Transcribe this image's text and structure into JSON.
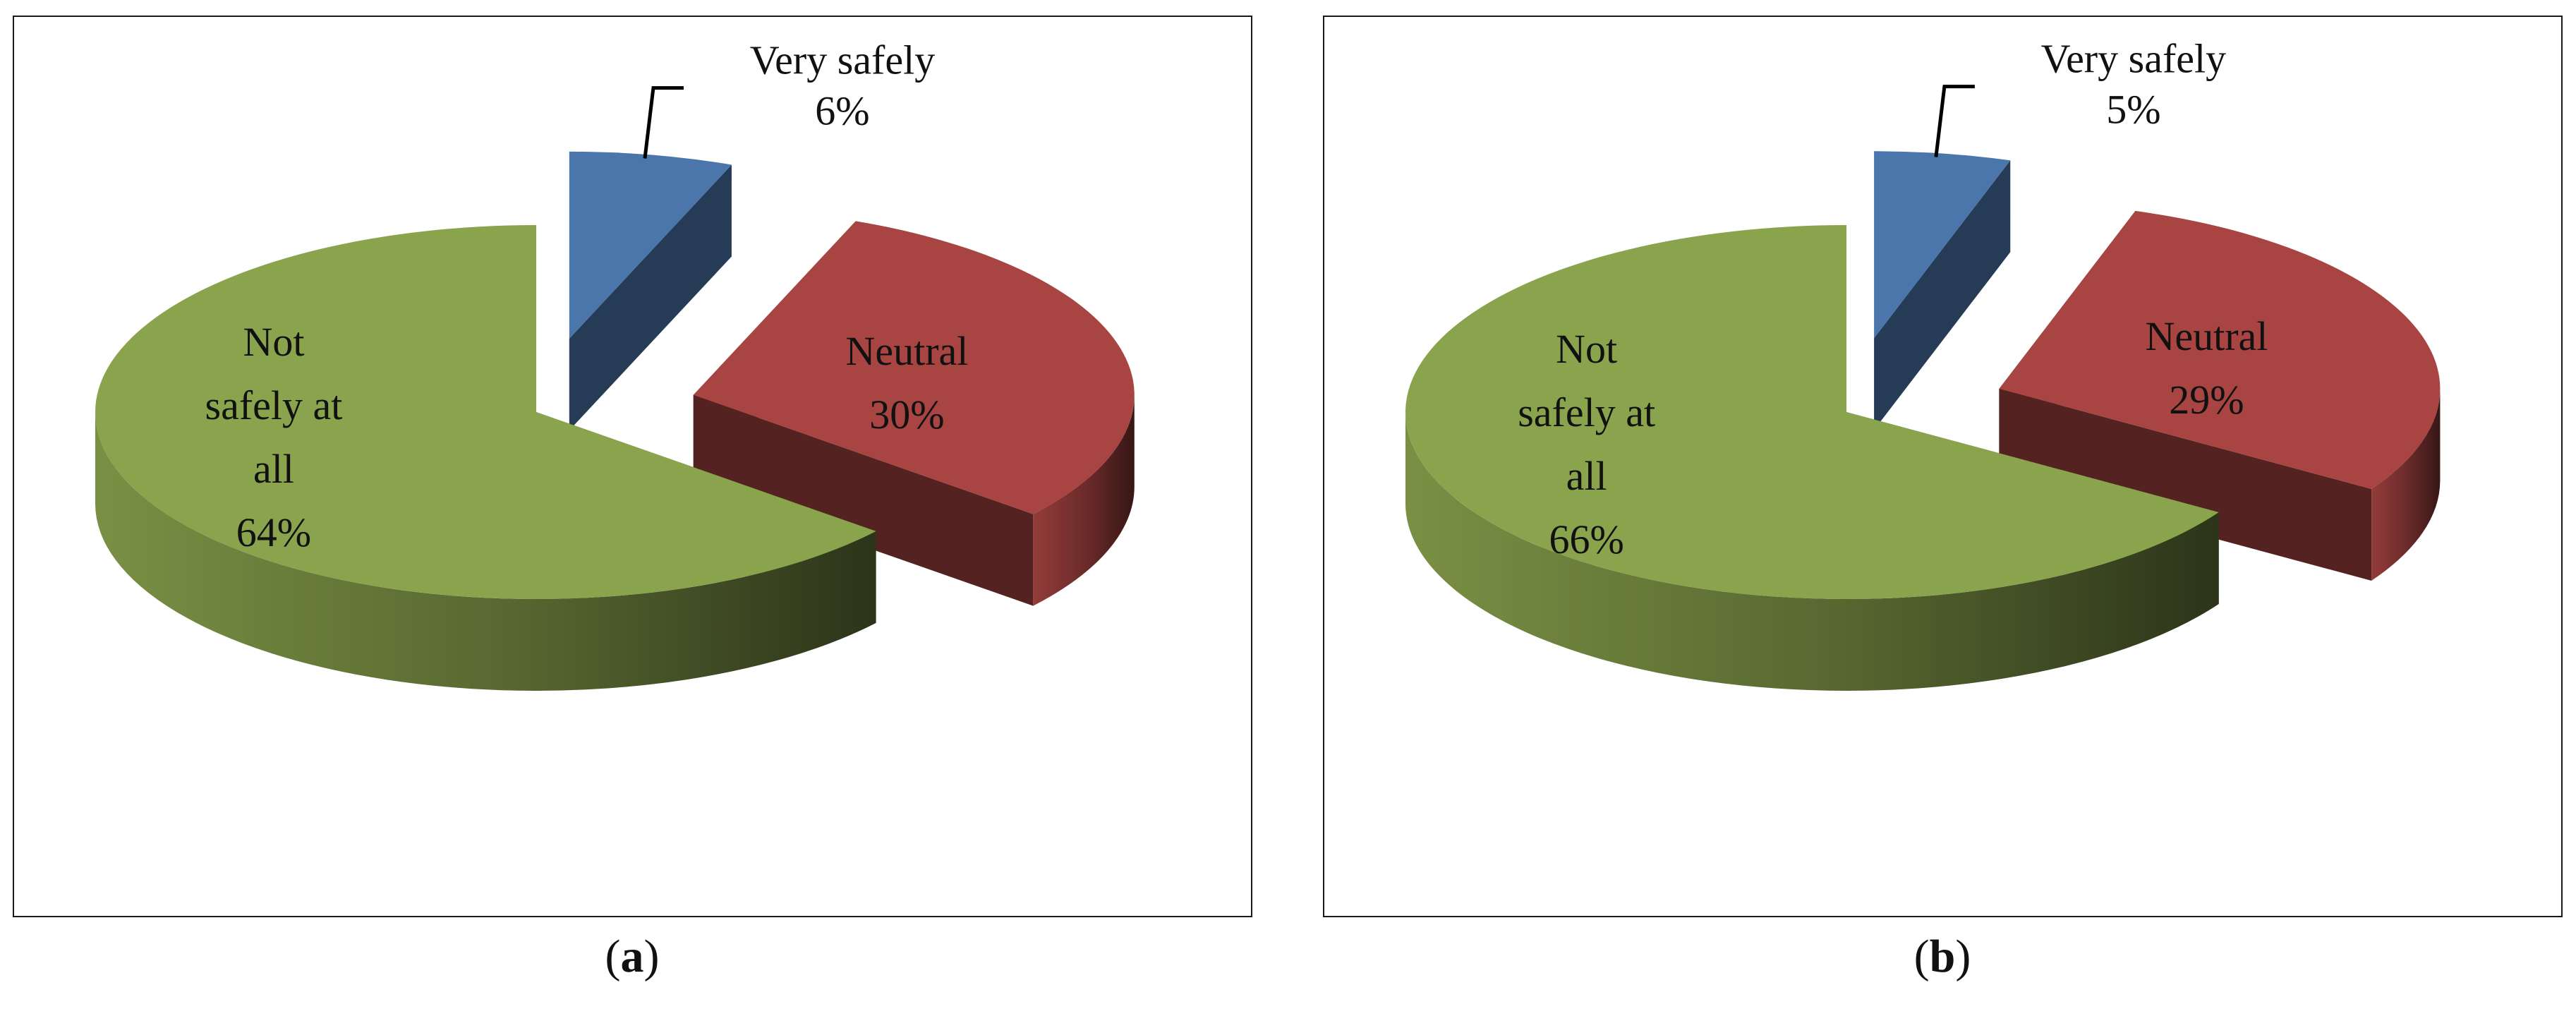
{
  "chart_data": [
    {
      "type": "pie",
      "panel_label": "a",
      "categories": [
        "Very safely",
        "Neutral",
        "Not safely at all"
      ],
      "values": [
        6,
        30,
        64
      ],
      "value_labels": [
        "6%",
        "30%",
        "64%"
      ],
      "label_lines": [
        [
          "Very safely"
        ],
        [
          "Neutral"
        ],
        [
          "Not",
          "safely at",
          "all"
        ]
      ],
      "colors": [
        "#4a76ab",
        "#a84442",
        "#8aa44d"
      ]
    },
    {
      "type": "pie",
      "panel_label": "b",
      "categories": [
        "Very safely",
        "Neutral",
        "Not safely at all"
      ],
      "values": [
        5,
        29,
        66
      ],
      "value_labels": [
        "5%",
        "29%",
        "66%"
      ],
      "label_lines": [
        [
          "Very safely"
        ],
        [
          "Neutral"
        ],
        [
          "Not",
          "safely at",
          "all"
        ]
      ],
      "colors": [
        "#4a76ab",
        "#a84442",
        "#8aa44d"
      ]
    }
  ],
  "captions": {
    "a": {
      "open": "(",
      "letter": "a",
      "close": ")"
    },
    "b": {
      "open": "(",
      "letter": "b",
      "close": ")"
    }
  }
}
